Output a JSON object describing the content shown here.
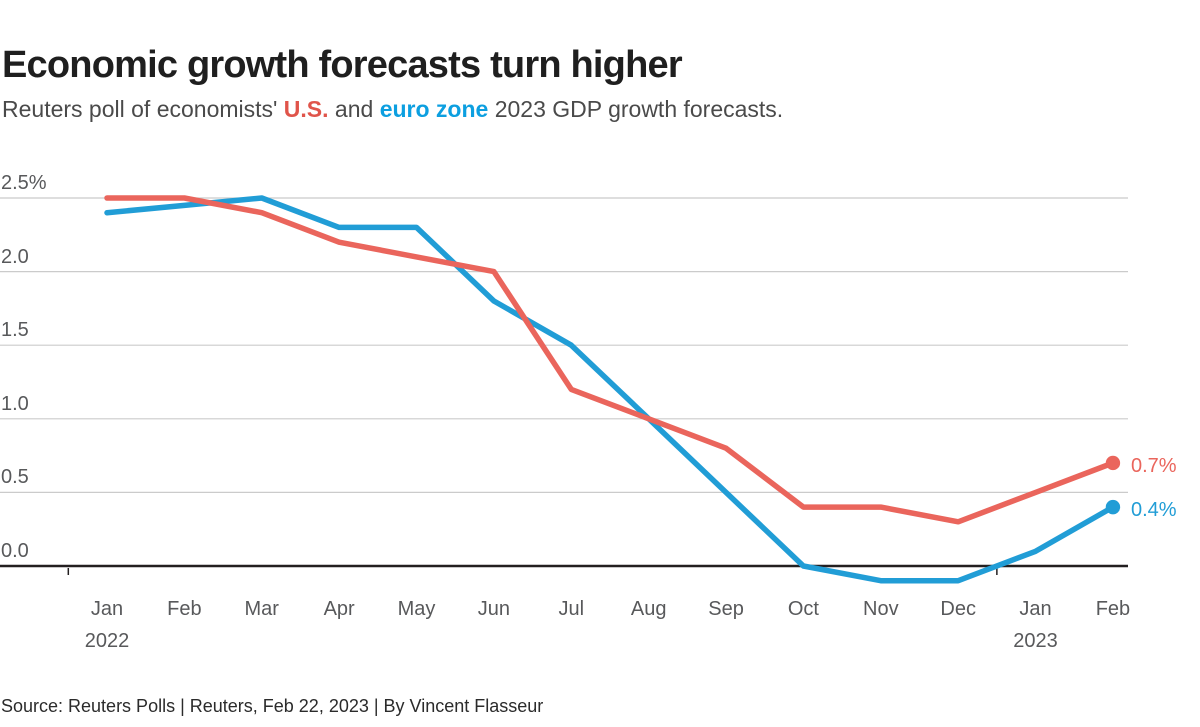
{
  "header": {
    "title": "Economic growth forecasts turn higher",
    "subtitle": {
      "prefix": "Reuters poll of economists' ",
      "us_label": "U.S.",
      "mid": " and ",
      "euro_label": "euro zone",
      "suffix": " 2023 GDP growth forecasts."
    }
  },
  "footer": {
    "source": "Source: Reuters Polls | Reuters, Feb 22, 2023 | By Vincent Flasseur"
  },
  "colors": {
    "us_text": "#e0544a",
    "euro_text": "#0c9fe0",
    "us_line": "#ea655c",
    "euro_line": "#219dd6",
    "gridline": "#cbcbcb",
    "zero_line": "#231f20",
    "axis_text": "#58595b",
    "title_text": "#1f1f1f"
  },
  "chart_data": {
    "type": "line",
    "title": "Economic growth forecasts turn higher",
    "subtitle": "Reuters poll of economists' U.S. and euro zone 2023 GDP growth forecasts.",
    "categories": [
      "Jan",
      "Feb",
      "Mar",
      "Apr",
      "May",
      "Jun",
      "Jul",
      "Aug",
      "Sep",
      "Oct",
      "Nov",
      "Dec",
      "Jan",
      "Feb"
    ],
    "year_labels": [
      {
        "index": 0,
        "label": "2022"
      },
      {
        "index": 12,
        "label": "2023"
      }
    ],
    "yticks": [
      {
        "label": "2.5%",
        "value": 2.5
      },
      {
        "label": "2.0",
        "value": 2.0
      },
      {
        "label": "1.5",
        "value": 1.5
      },
      {
        "label": "1.0",
        "value": 1.0
      },
      {
        "label": "0.5",
        "value": 0.5
      },
      {
        "label": "0.0",
        "value": 0.0
      }
    ],
    "ylim": [
      -0.15,
      2.6
    ],
    "grid": true,
    "legend_position": "inline-subtitle",
    "series": [
      {
        "name": "euro zone",
        "color": "#219dd6",
        "end_label": "0.4%",
        "values": [
          2.4,
          2.45,
          2.5,
          2.3,
          2.3,
          1.8,
          1.5,
          1.0,
          0.5,
          0.0,
          -0.1,
          -0.1,
          0.1,
          0.4
        ]
      },
      {
        "name": "U.S.",
        "color": "#ea655c",
        "end_label": "0.7%",
        "values": [
          2.5,
          2.5,
          2.4,
          2.2,
          2.1,
          2.0,
          1.2,
          1.0,
          0.8,
          0.4,
          0.4,
          0.3,
          0.5,
          0.7
        ]
      }
    ]
  }
}
